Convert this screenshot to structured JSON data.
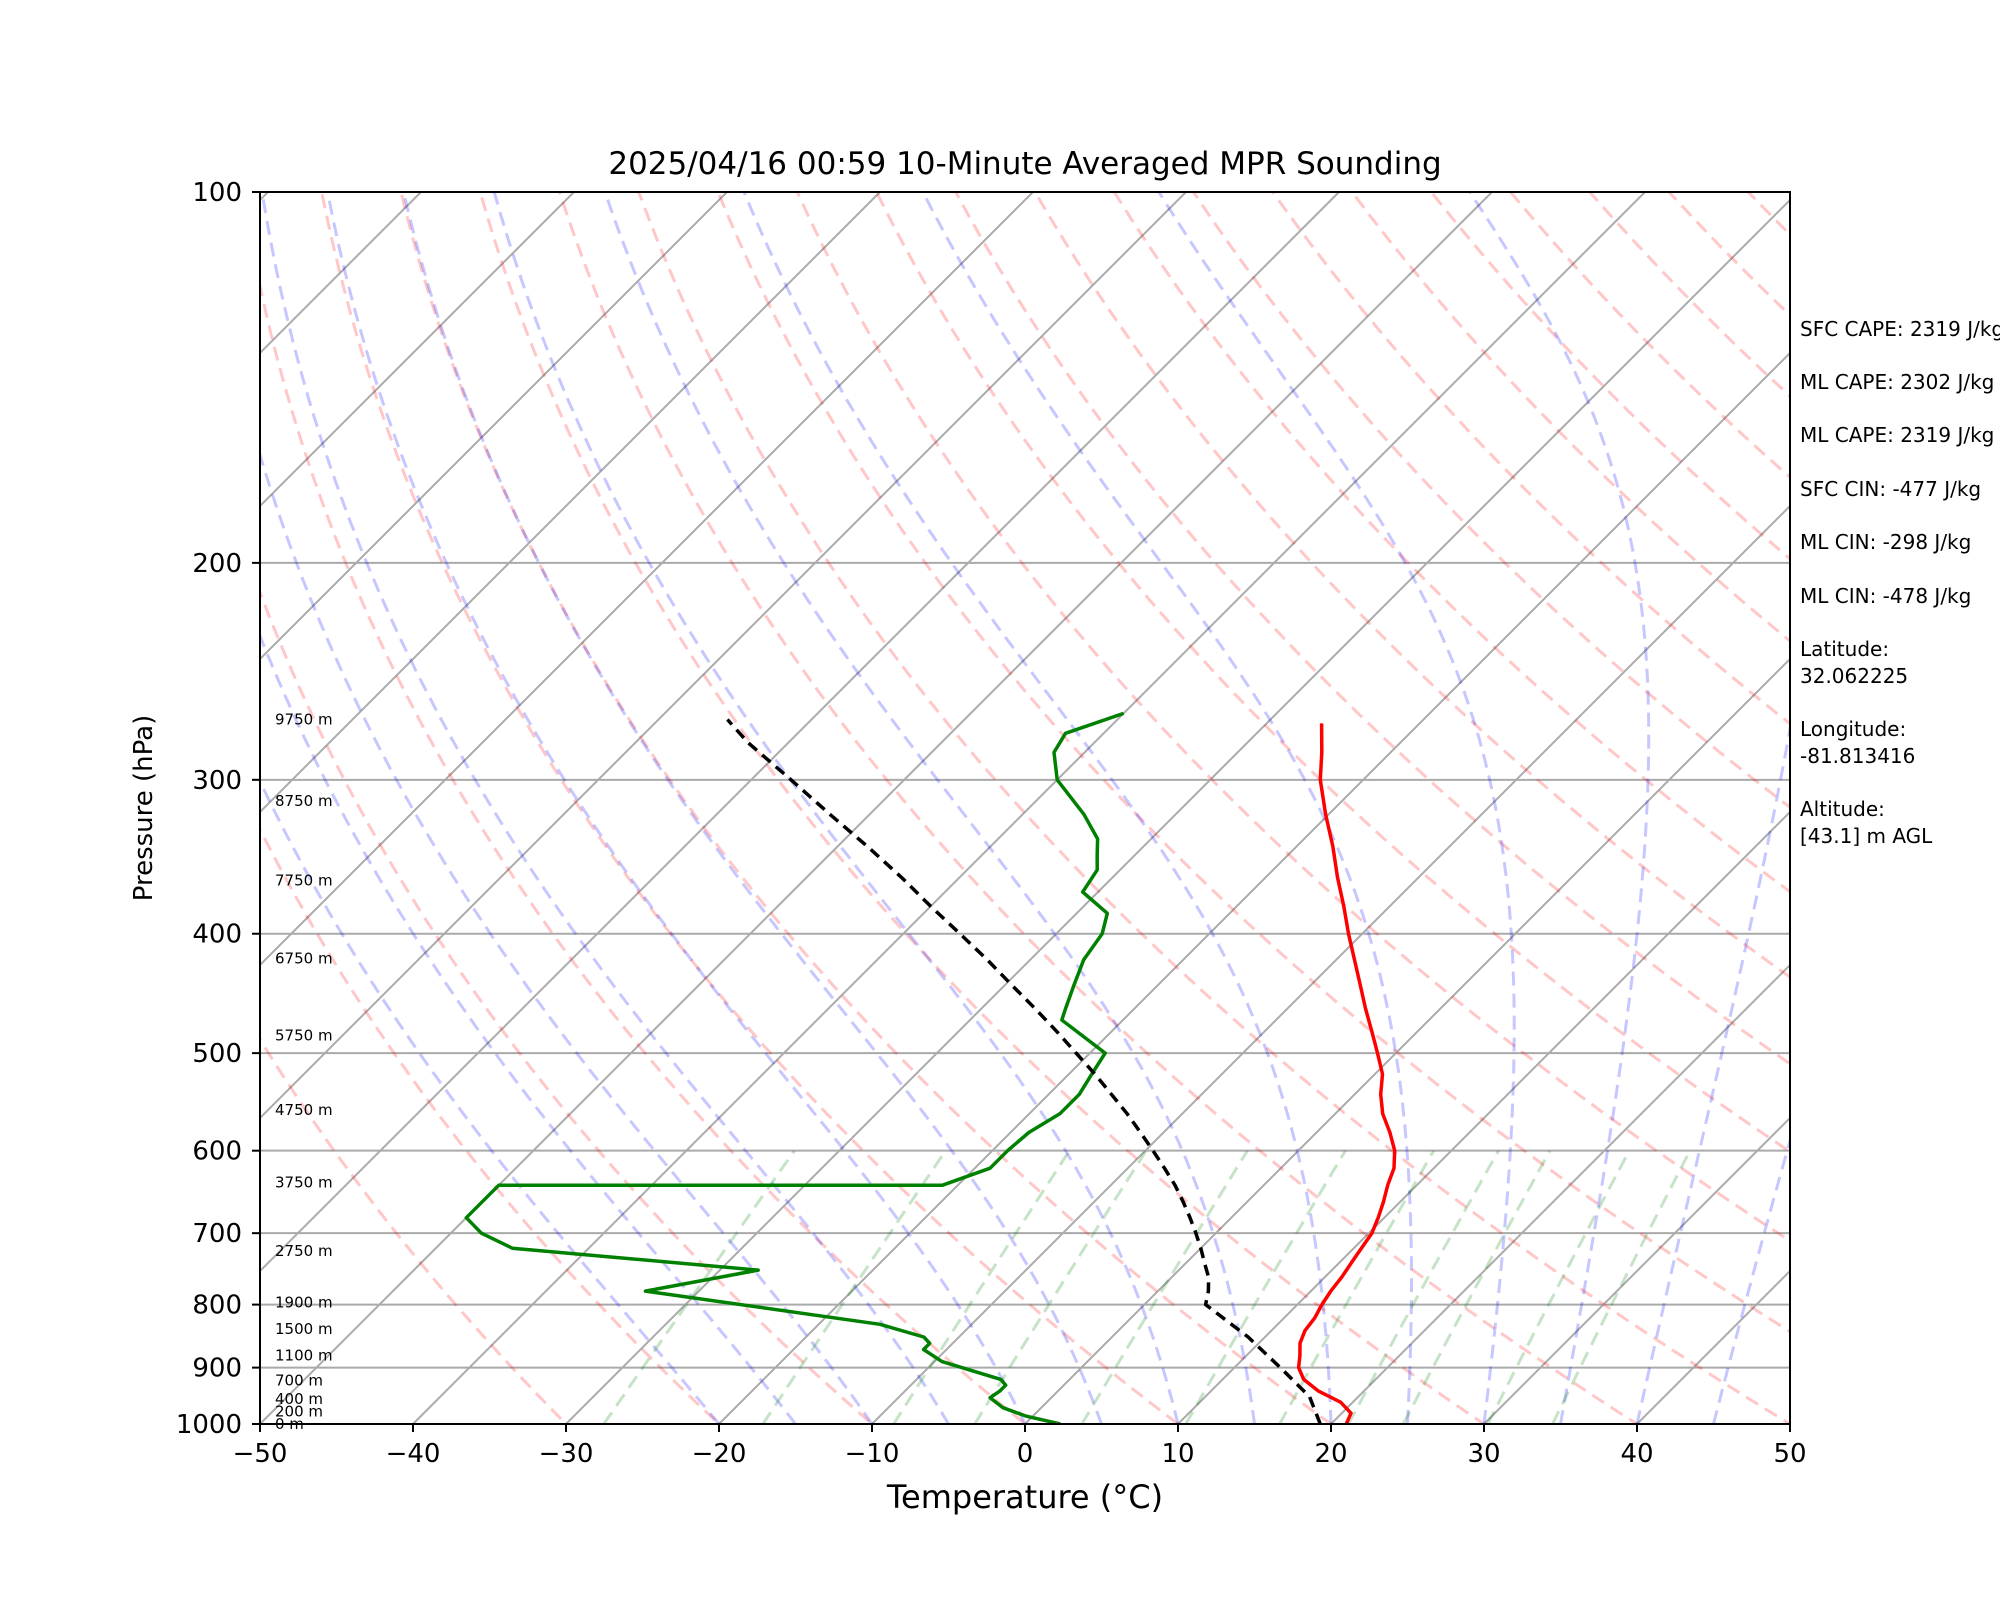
{
  "chart_data": {
    "type": "line",
    "title": "2025/04/16 00:59 10-Minute Averaged MPR Sounding",
    "xlabel": "Temperature (°C)",
    "ylabel": "Pressure (hPa)",
    "xlim": [
      -50,
      50
    ],
    "ylim": [
      1000,
      100
    ],
    "y_scale": "log",
    "grid": true,
    "x_ticks": [
      "−50",
      "−40",
      "−30",
      "−20",
      "−10",
      "0",
      "10",
      "20",
      "30",
      "40",
      "50"
    ],
    "y_ticks": [
      "100",
      "200",
      "300",
      "400",
      "500",
      "600",
      "700",
      "800",
      "900",
      "1000"
    ],
    "height_labels": [
      {
        "p": 1000,
        "label": "0 m"
      },
      {
        "p": 977,
        "label": "200 m"
      },
      {
        "p": 954,
        "label": "400 m"
      },
      {
        "p": 922,
        "label": "700 m"
      },
      {
        "p": 880,
        "label": "1100 m"
      },
      {
        "p": 837,
        "label": "1500 m"
      },
      {
        "p": 797,
        "label": "1900 m"
      },
      {
        "p": 724,
        "label": "2750 m"
      },
      {
        "p": 637,
        "label": "3750 m"
      },
      {
        "p": 556,
        "label": "4750 m"
      },
      {
        "p": 484,
        "label": "5750 m"
      },
      {
        "p": 419,
        "label": "6750 m"
      },
      {
        "p": 362,
        "label": "7750 m"
      },
      {
        "p": 312,
        "label": "8750 m"
      },
      {
        "p": 268,
        "label": "9750 m"
      }
    ],
    "series": [
      {
        "color": "#ff0000",
        "points": [
          [
            1000,
            21.0
          ],
          [
            980,
            20.6
          ],
          [
            960,
            19.2
          ],
          [
            940,
            17.0
          ],
          [
            920,
            15.3
          ],
          [
            900,
            14.2
          ],
          [
            880,
            13.5
          ],
          [
            860,
            12.7
          ],
          [
            840,
            12.2
          ],
          [
            820,
            12.0
          ],
          [
            800,
            11.6
          ],
          [
            780,
            11.3
          ],
          [
            760,
            11.1
          ],
          [
            740,
            10.8
          ],
          [
            720,
            10.5
          ],
          [
            700,
            10.2
          ],
          [
            680,
            9.6
          ],
          [
            660,
            8.9
          ],
          [
            640,
            8.1
          ],
          [
            620,
            7.4
          ],
          [
            600,
            6.3
          ],
          [
            580,
            4.8
          ],
          [
            560,
            3.1
          ],
          [
            540,
            1.7
          ],
          [
            520,
            0.5
          ],
          [
            500,
            -1.2
          ],
          [
            480,
            -3.0
          ],
          [
            460,
            -4.9
          ],
          [
            440,
            -6.8
          ],
          [
            420,
            -8.8
          ],
          [
            400,
            -10.9
          ],
          [
            380,
            -13.0
          ],
          [
            360,
            -15.3
          ],
          [
            340,
            -17.6
          ],
          [
            320,
            -20.2
          ],
          [
            300,
            -22.8
          ],
          [
            285,
            -24.5
          ],
          [
            270,
            -26.4
          ]
        ]
      },
      {
        "color": "#008000",
        "points": [
          [
            1000,
            2.3
          ],
          [
            985,
            -0.5
          ],
          [
            970,
            -2.5
          ],
          [
            952,
            -4.0
          ],
          [
            940,
            -3.8
          ],
          [
            930,
            -3.8
          ],
          [
            920,
            -4.5
          ],
          [
            890,
            -9.5
          ],
          [
            870,
            -11.5
          ],
          [
            860,
            -11.5
          ],
          [
            850,
            -12.3
          ],
          [
            830,
            -16.0
          ],
          [
            780,
            -33.5
          ],
          [
            750,
            -27.5
          ],
          [
            720,
            -45.0
          ],
          [
            700,
            -48.0
          ],
          [
            680,
            -50.0
          ],
          [
            640,
            -50.0
          ],
          [
            640,
            -21.0
          ],
          [
            620,
            -19.0
          ],
          [
            600,
            -19.0
          ],
          [
            580,
            -18.8
          ],
          [
            560,
            -18.0
          ],
          [
            540,
            -18.0
          ],
          [
            520,
            -18.5
          ],
          [
            500,
            -19.0
          ],
          [
            470,
            -24.0
          ],
          [
            460,
            -24.5
          ],
          [
            440,
            -25.5
          ],
          [
            420,
            -26.5
          ],
          [
            400,
            -27.0
          ],
          [
            385,
            -28.0
          ],
          [
            370,
            -31.0
          ],
          [
            355,
            -31.5
          ],
          [
            345,
            -32.5
          ],
          [
            335,
            -33.5
          ],
          [
            320,
            -36.0
          ],
          [
            300,
            -40.0
          ],
          [
            285,
            -42.0
          ],
          [
            275,
            -42.5
          ],
          [
            265,
            -40.0
          ]
        ]
      },
      {
        "color": "#000000",
        "dashed": true,
        "points": [
          [
            1000,
            19.3
          ],
          [
            950,
            16.8
          ],
          [
            900,
            13.0
          ],
          [
            850,
            8.9
          ],
          [
            800,
            4.0
          ],
          [
            780,
            3.3
          ],
          [
            760,
            2.4
          ],
          [
            740,
            1.2
          ],
          [
            720,
            0.0
          ],
          [
            700,
            -1.3
          ],
          [
            680,
            -2.7
          ],
          [
            660,
            -4.2
          ],
          [
            640,
            -5.8
          ],
          [
            620,
            -7.6
          ],
          [
            600,
            -9.5
          ],
          [
            580,
            -11.5
          ],
          [
            560,
            -13.6
          ],
          [
            540,
            -15.9
          ],
          [
            520,
            -18.3
          ],
          [
            500,
            -20.9
          ],
          [
            480,
            -23.6
          ],
          [
            460,
            -26.5
          ],
          [
            440,
            -29.6
          ],
          [
            420,
            -32.8
          ],
          [
            400,
            -36.3
          ],
          [
            380,
            -40.0
          ],
          [
            360,
            -43.8
          ],
          [
            340,
            -48.0
          ],
          [
            320,
            -52.6
          ],
          [
            300,
            -57.4
          ],
          [
            280,
            -62.6
          ],
          [
            268,
            -65.5
          ]
        ]
      }
    ]
  },
  "info": {
    "sfc_cape": "SFC CAPE: 2319 J/kg",
    "ml_cape_1": "ML CAPE: 2302 J/kg",
    "ml_cape_2": "ML CAPE: 2319 J/kg",
    "sfc_cin": "SFC CIN: -477 J/kg",
    "ml_cin_1": "ML CIN: -298 J/kg",
    "ml_cin_2": "ML CIN: -478 J/kg",
    "latitude": "Latitude:\n32.062225",
    "longitude": "Longitude:\n-81.813416",
    "altitude": "Altitude:\n[43.1] m AGL"
  }
}
